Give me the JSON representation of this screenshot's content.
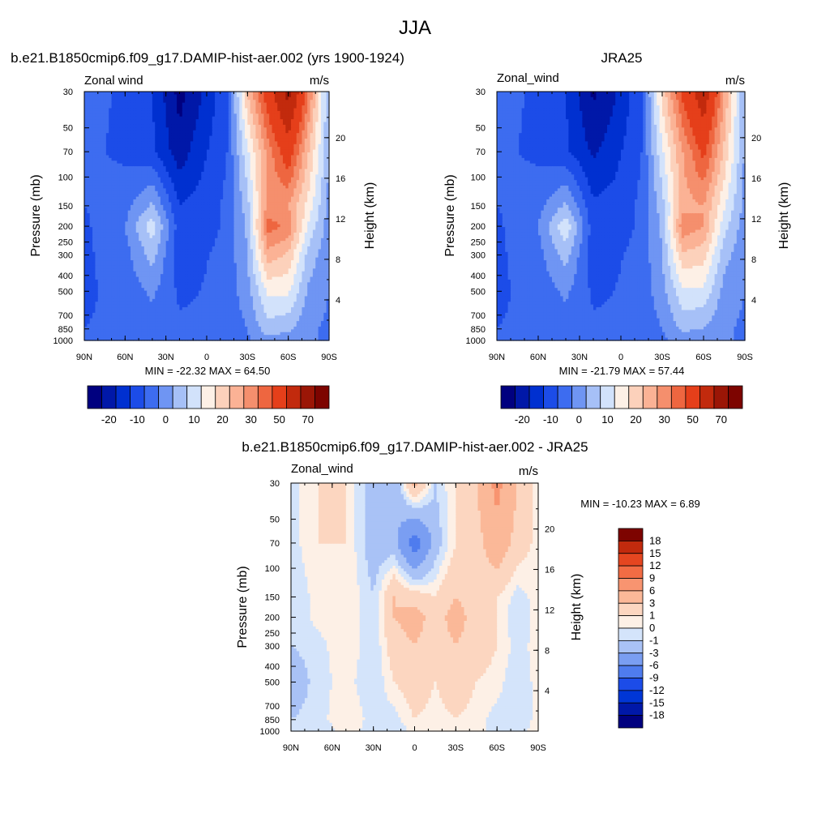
{
  "figure": {
    "title": "JJA"
  },
  "palettes": {
    "full": [
      "#00007f",
      "#0018a8",
      "#0030d0",
      "#1c4ce8",
      "#3d6cf0",
      "#6f95f3",
      "#a6c0f7",
      "#d2e2fb",
      "#fdf0e6",
      "#fcd1bb",
      "#fbb295",
      "#f58f6d",
      "#ee6640",
      "#e53f1a",
      "#c22a0d",
      "#9b1606",
      "#7d0400"
    ],
    "diff": [
      "#00007f",
      "#0018a8",
      "#0036d6",
      "#1c4ce8",
      "#4f7cee",
      "#7a9ef2",
      "#a9c2f6",
      "#d4e4fb",
      "#fdf0e6",
      "#fcd6c0",
      "#fbb898",
      "#f89470",
      "#f26c44",
      "#e54620",
      "#c22a0d",
      "#7d0400"
    ]
  },
  "chart_data": [
    {
      "type": "heatmap",
      "title": "b.e21.B1850cmip6.f09_g17.DAMIP-hist-aer.002 (yrs 1900-1924)",
      "variable_label": "Zonal wind",
      "units": "m/s",
      "xlabel": "",
      "ylabel": "Pressure (mb)",
      "y2label": "Height (km)",
      "x_ticks": [
        "90N",
        "60N",
        "30N",
        "0",
        "30S",
        "60S",
        "90S"
      ],
      "x_range": [
        90,
        -90
      ],
      "y_ticks": [
        "30",
        "50",
        "70",
        "100",
        "150",
        "200",
        "250",
        "300",
        "400",
        "500",
        "700",
        "850",
        "1000"
      ],
      "y_range": [
        30,
        1000
      ],
      "y_log": true,
      "y2_ticks": [
        "20",
        "16",
        "12",
        "8",
        "4"
      ],
      "min_max_text": "MIN = -22.32  MAX =  64.50",
      "min": -22.32,
      "max": 64.5,
      "contour_levels": [
        -25,
        -20,
        -15,
        -10,
        -5,
        0,
        5,
        10,
        15,
        20,
        25,
        30,
        35,
        40,
        50,
        60,
        70,
        80
      ],
      "colorbar": {
        "orientation": "horizontal",
        "tick_labels": [
          "-20",
          "-10",
          "0",
          "10",
          "20",
          "30",
          "50",
          "70"
        ],
        "palette": "full"
      },
      "field": {
        "x": [
          90,
          60,
          40,
          20,
          5,
          -15,
          -30,
          -45,
          -60,
          -75,
          -90
        ],
        "y": [
          30,
          70,
          150,
          200,
          300,
          500,
          850,
          1000
        ],
        "z": [
          [
            -3,
            -6,
            -10,
            -22,
            -16,
            -6,
            25,
            45,
            64,
            35,
            5
          ],
          [
            -4,
            -6,
            -9,
            -18,
            -12,
            -5,
            14,
            32,
            45,
            25,
            5
          ],
          [
            -5,
            -2,
            6,
            -10,
            -8,
            -4,
            8,
            32,
            30,
            18,
            3
          ],
          [
            -6,
            0,
            13,
            -8,
            -8,
            -4,
            6,
            37,
            34,
            14,
            2
          ],
          [
            -6,
            -2,
            7,
            -8,
            -6,
            -3,
            5,
            28,
            24,
            8,
            1
          ],
          [
            -6,
            -3,
            1,
            -6,
            -5,
            -3,
            3,
            16,
            16,
            4,
            0
          ],
          [
            -5,
            -4,
            -2,
            -4,
            -4,
            -3,
            0,
            8,
            6,
            1,
            -1
          ],
          [
            -3,
            -4,
            -3,
            -3,
            -3,
            -2,
            -1,
            3,
            2,
            0,
            0
          ]
        ]
      }
    },
    {
      "type": "heatmap",
      "title": "JRA25",
      "variable_label": "Zonal_wind",
      "units": "m/s",
      "xlabel": "",
      "ylabel": "Pressure (mb)",
      "y2label": "Height (km)",
      "x_ticks": [
        "90N",
        "60N",
        "30N",
        "0",
        "30S",
        "60S",
        "90S"
      ],
      "x_range": [
        90,
        -90
      ],
      "y_ticks": [
        "30",
        "50",
        "70",
        "100",
        "150",
        "200",
        "250",
        "300",
        "400",
        "500",
        "700",
        "850",
        "1000"
      ],
      "y_range": [
        30,
        1000
      ],
      "y_log": true,
      "y2_ticks": [
        "20",
        "16",
        "12",
        "8",
        "4"
      ],
      "min_max_text": "MIN = -21.79  MAX =  57.44",
      "min": -21.79,
      "max": 57.44,
      "contour_levels": [
        -25,
        -20,
        -15,
        -10,
        -5,
        0,
        5,
        10,
        15,
        20,
        25,
        30,
        35,
        40,
        50,
        60,
        70,
        80
      ],
      "colorbar": {
        "orientation": "horizontal",
        "tick_labels": [
          "-20",
          "-10",
          "0",
          "10",
          "20",
          "30",
          "50",
          "70"
        ],
        "palette": "full"
      },
      "field": {
        "x": [
          90,
          60,
          40,
          20,
          5,
          -15,
          -30,
          -45,
          -60,
          -75,
          -90
        ],
        "y": [
          30,
          70,
          150,
          200,
          300,
          500,
          850,
          1000
        ],
        "z": [
          [
            -3,
            -6,
            -10,
            -21,
            -16,
            -6,
            22,
            42,
            57,
            30,
            4
          ],
          [
            -4,
            -6,
            -9,
            -16,
            -12,
            -5,
            14,
            30,
            42,
            24,
            4
          ],
          [
            -5,
            -2,
            6,
            -9,
            -8,
            -4,
            8,
            28,
            30,
            16,
            3
          ],
          [
            -6,
            0,
            14,
            -8,
            -8,
            -4,
            6,
            34,
            30,
            12,
            2
          ],
          [
            -6,
            -2,
            7,
            -8,
            -6,
            -3,
            5,
            24,
            22,
            7,
            1
          ],
          [
            -6,
            -3,
            1,
            -6,
            -5,
            -3,
            3,
            14,
            14,
            3,
            0
          ],
          [
            -5,
            -4,
            -2,
            -4,
            -4,
            -3,
            0,
            6,
            5,
            1,
            -1
          ],
          [
            -3,
            -4,
            -3,
            -3,
            -3,
            -2,
            -1,
            2,
            1,
            0,
            0
          ]
        ]
      }
    },
    {
      "type": "heatmap",
      "title": "b.e21.B1850cmip6.f09_g17.DAMIP-hist-aer.002 - JRA25",
      "variable_label": "Zonal_wind",
      "units": "m/s",
      "xlabel": "",
      "ylabel": "Pressure (mb)",
      "y2label": "Height (km)",
      "x_ticks": [
        "90N",
        "60N",
        "30N",
        "0",
        "30S",
        "60S",
        "90S"
      ],
      "x_range": [
        90,
        -90
      ],
      "y_ticks": [
        "30",
        "50",
        "70",
        "100",
        "150",
        "200",
        "250",
        "300",
        "400",
        "500",
        "700",
        "850",
        "1000"
      ],
      "y_range": [
        30,
        1000
      ],
      "y_log": true,
      "y2_ticks": [
        "20",
        "16",
        "12",
        "8",
        "4"
      ],
      "min_max_text": "MIN = -10.23  MAX =   6.89",
      "min": -10.23,
      "max": 6.89,
      "contour_levels": [
        -21,
        -18,
        -15,
        -12,
        -9,
        -6,
        -3,
        -1,
        0,
        1,
        3,
        6,
        9,
        12,
        15,
        18,
        21
      ],
      "colorbar": {
        "orientation": "vertical",
        "tick_labels": [
          "18",
          "15",
          "12",
          "9",
          "6",
          "3",
          "1",
          "0",
          "-1",
          "-3",
          "-6",
          "-9",
          "-12",
          "-15",
          "-18"
        ],
        "palette": "diff"
      },
      "field": {
        "x": [
          90,
          70,
          50,
          30,
          15,
          0,
          -15,
          -30,
          -45,
          -60,
          -75,
          -90
        ],
        "y": [
          30,
          70,
          150,
          200,
          300,
          500,
          850,
          1000
        ],
        "z": [
          [
            -0.5,
            1,
            1,
            -2,
            -3,
            4,
            -1,
            1,
            3,
            6.9,
            3,
            0.5
          ],
          [
            -0.5,
            1,
            1,
            -2,
            -2,
            -8,
            -2,
            1,
            2,
            5,
            2,
            0.5
          ],
          [
            -1,
            0.5,
            1,
            -1,
            3,
            2,
            1,
            3,
            2,
            1,
            -0.5,
            0.5
          ],
          [
            -1,
            0.5,
            1,
            -1,
            3,
            4,
            2,
            4,
            2,
            1,
            -1,
            0.5
          ],
          [
            -1,
            -0.5,
            1,
            -1,
            2,
            3,
            2,
            3,
            2,
            1,
            -0.5,
            0.5
          ],
          [
            -2,
            -0.5,
            0.5,
            -1,
            1,
            2,
            1,
            2,
            1,
            0.5,
            -1,
            0.5
          ],
          [
            -1,
            -0.5,
            1,
            -0.5,
            -0.5,
            1,
            0.5,
            1,
            0.5,
            -0.5,
            -1,
            0.5
          ],
          [
            -0.5,
            -1,
            0.5,
            -0.5,
            -1,
            0.5,
            0.5,
            0.5,
            0.5,
            -0.5,
            -0.5,
            0.5
          ]
        ]
      }
    }
  ]
}
